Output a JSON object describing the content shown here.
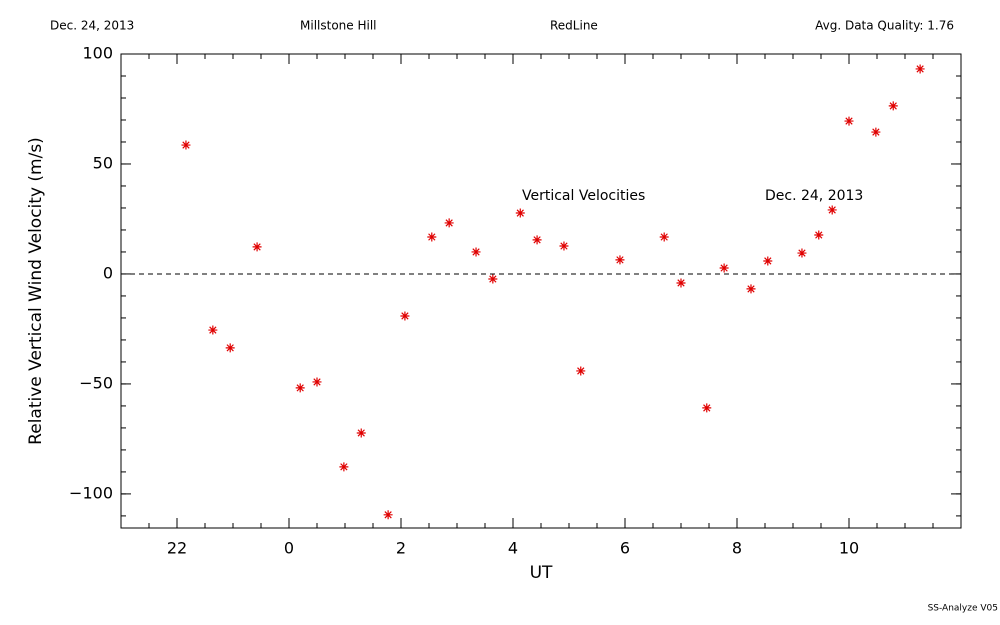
{
  "header": {
    "date": "Dec. 24, 2013",
    "site": "Millstone Hill",
    "instrument": "RedLine",
    "quality": "Avg. Data Quality: 1.76"
  },
  "footer": "SS-Analyze V05",
  "chart_data": {
    "type": "scatter",
    "xlabel": "UT",
    "ylabel": "Relative Vertical Wind Velocity (m/s)",
    "annotations": [
      "Vertical Velocities",
      "Dec. 24, 2013"
    ],
    "color": "#e00000",
    "marker": "asterisk",
    "reference_line": 0,
    "xlim": [
      -3,
      12
    ],
    "xticks": [
      {
        "value": -2,
        "label": "22"
      },
      0,
      2,
      4,
      6,
      8,
      10
    ],
    "xminor": 0.5,
    "ylim": [
      -115.5,
      100
    ],
    "yticks": [
      {
        "value": -100,
        "label": "−100"
      },
      {
        "value": -50,
        "label": "−50"
      },
      0,
      50,
      100
    ],
    "yminor": 10,
    "x": [
      -1.84,
      -1.36,
      -1.05,
      -0.57,
      0.2,
      0.5,
      0.98,
      1.29,
      1.77,
      2.07,
      2.55,
      2.86,
      3.34,
      3.64,
      4.13,
      4.43,
      4.91,
      5.21,
      5.91,
      6.7,
      7.0,
      7.46,
      7.77,
      8.25,
      8.55,
      9.16,
      9.46,
      9.7,
      10.0,
      10.48,
      10.79,
      11.27
    ],
    "values": [
      58.6,
      -25.5,
      -33.6,
      12.3,
      -51.8,
      -49.1,
      -87.7,
      -72.3,
      -109.5,
      -19.1,
      16.8,
      23.2,
      10.0,
      -2.3,
      27.7,
      15.5,
      12.7,
      -44.1,
      6.4,
      16.8,
      -4.1,
      -60.9,
      2.7,
      -6.8,
      5.9,
      9.5,
      17.7,
      29.1,
      69.5,
      64.5,
      76.4,
      93.2
    ]
  }
}
